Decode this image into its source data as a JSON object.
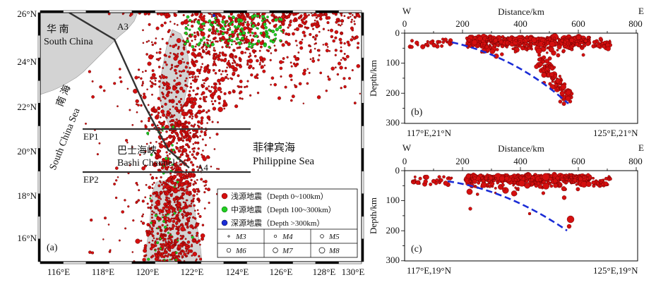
{
  "map": {
    "panel_label": "(a)",
    "lat_labels": [
      "26°N",
      "24°N",
      "22°N",
      "20°N",
      "18°N",
      "16°N"
    ],
    "lon_labels": [
      "116°E",
      "118°E",
      "120°E",
      "122°E",
      "124°E",
      "126°E",
      "128°E",
      "130°E"
    ],
    "regions": {
      "south_china_cn": "华  南",
      "south_china_en": "South China",
      "scs_cn": "南  海",
      "scs_en": "South China Sea",
      "bashi_cn": "巴士海峡",
      "bashi_en": "Bashi Channel",
      "phil_cn": "菲律宾海",
      "phil_en": "Philippine Sea"
    },
    "profiles": {
      "a3": "A3",
      "a4": "A4",
      "ep1": "EP1",
      "ep2": "EP2"
    },
    "legend": {
      "shallow": "浅源地震（Depth 0~100km）",
      "intermediate": "中源地震（Depth 100~300km）",
      "deep": "深源地震（Depth >300km）",
      "mags": [
        "M3",
        "M4",
        "M5",
        "M6",
        "M7",
        "M8"
      ]
    },
    "colors": {
      "shallow": "#d40f0f",
      "intermediate": "#22cc22",
      "deep": "#1a2cd6",
      "land": "#d3d3d3"
    }
  },
  "sections": {
    "b": {
      "label": "(b)",
      "west": "W",
      "east": "E",
      "xlabel": "Distance/km",
      "ylabel": "Depth/km",
      "xticks": [
        "0",
        "200",
        "400",
        "600",
        "800"
      ],
      "yticks": [
        "0",
        "100",
        "200",
        "300"
      ],
      "left_coord": "117°E,21°N",
      "right_coord": "125°E,21°N"
    },
    "c": {
      "label": "(c)",
      "west": "W",
      "east": "E",
      "xlabel": "Distance/km",
      "ylabel": "Depth/km",
      "xticks": [
        "0",
        "200",
        "400",
        "600",
        "800"
      ],
      "yticks": [
        "0",
        "100",
        "200",
        "300"
      ],
      "left_coord": "117°E,19°N",
      "right_coord": "125°E,19°N"
    }
  }
}
